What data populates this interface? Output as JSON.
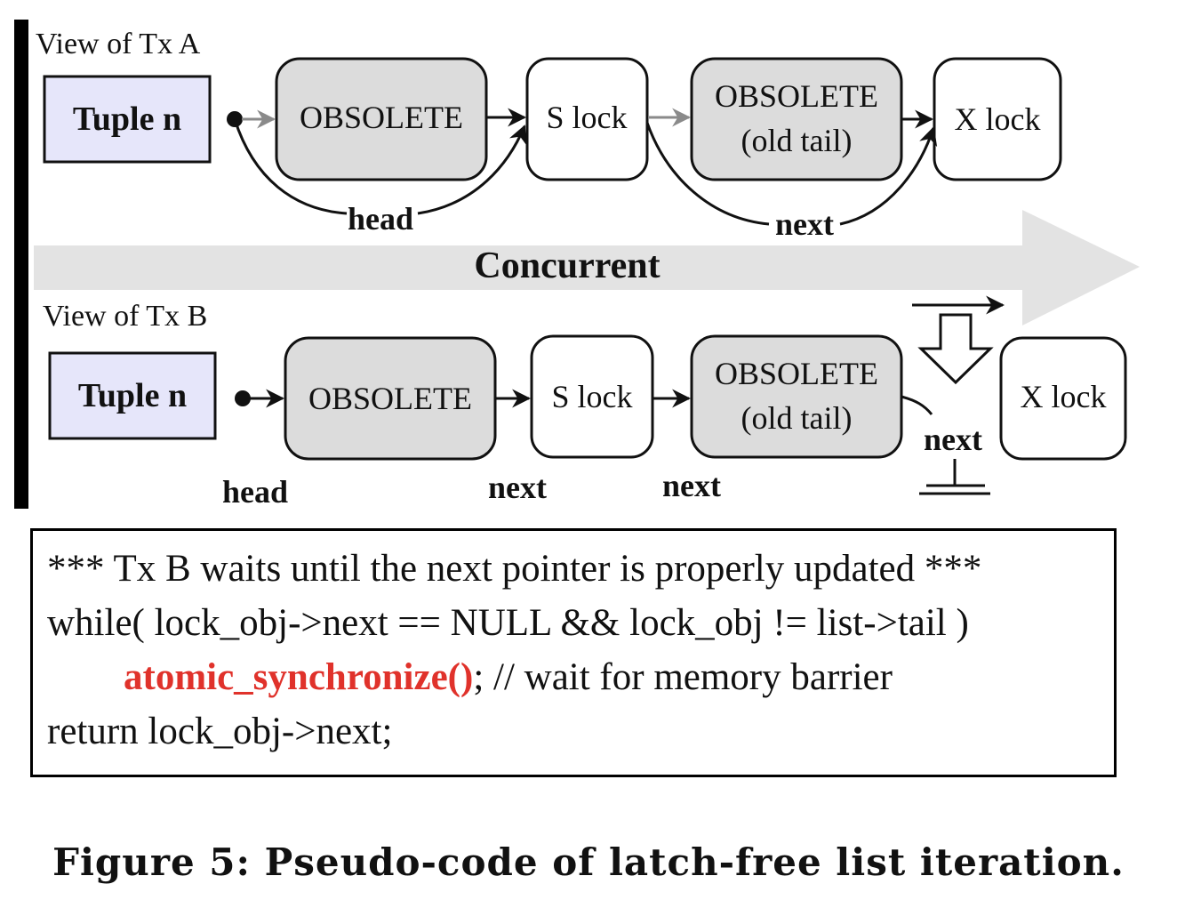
{
  "view_a": {
    "label": "View of Tx A",
    "tuple": "Tuple n",
    "node1": "OBSOLETE",
    "node2": "S lock",
    "node3_line1": "OBSOLETE",
    "node3_line2": "(old tail)",
    "node4": "X lock",
    "head_label": "head",
    "next_label": "next"
  },
  "concurrent_label": "Concurrent",
  "view_b": {
    "label": "View of Tx B",
    "tuple": "Tuple n",
    "node1": "OBSOLETE",
    "node2": "S lock",
    "node3_line1": "OBSOLETE",
    "node3_line2": "(old tail)",
    "node4": "X lock",
    "head_label": "head",
    "next_label_1": "next",
    "next_label_2": "next",
    "next_label_3": "next"
  },
  "code": {
    "line1": "*** Tx B waits until the next pointer is properly updated ***",
    "line2": "while( lock_obj->next == NULL && lock_obj != list->tail )",
    "line3_fn": "atomic_synchronize()",
    "line3_rest": "; // wait for memory barrier",
    "line4": "return lock_obj->next;"
  },
  "caption": "Figure 5: Pseudo-code of latch-free list iteration.",
  "colors": {
    "tuple_fill": "#e6e6fa",
    "obsolete_fill": "#dcdcdc",
    "concurrent_band": "#e3e3e3",
    "highlight_red": "#e0322b",
    "gray_arrow": "#8a8a8a"
  }
}
